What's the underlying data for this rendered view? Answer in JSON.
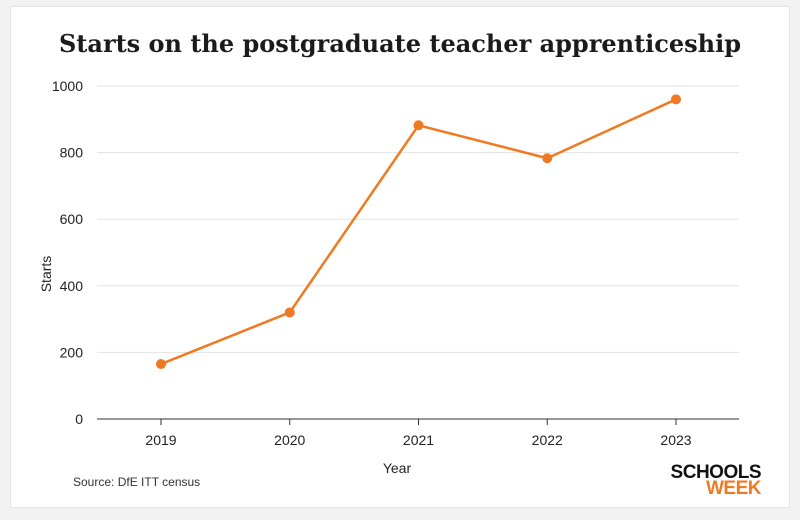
{
  "chart_data": {
    "type": "line",
    "title": "Starts on the postgraduate teacher apprenticeship",
    "xlabel": "Year",
    "ylabel": "Starts",
    "categories": [
      "2019",
      "2020",
      "2021",
      "2022",
      "2023"
    ],
    "series": [
      {
        "values": [
          165,
          320,
          882,
          783,
          960
        ]
      }
    ],
    "ylim": [
      0,
      1000
    ],
    "yticks": [
      "0",
      "200",
      "400",
      "600",
      "800",
      "1000"
    ],
    "grid": true,
    "color": "#f07a22"
  },
  "source": "Source: DfE ITT census",
  "logo": {
    "top": "SCHOOLS",
    "bottom": "WEEK",
    "top_color": "#111111",
    "bottom_color": "#f07a22"
  }
}
